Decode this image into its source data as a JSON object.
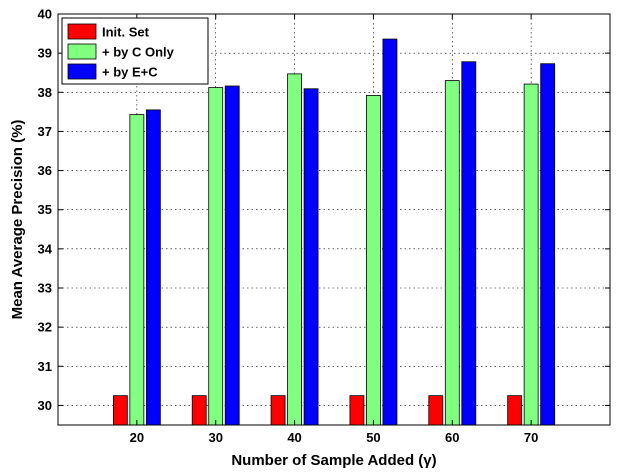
{
  "chart_data": {
    "type": "bar",
    "title": "",
    "xlabel": "Number of Sample Added (γ)",
    "ylabel": "Mean Average Precision (%)",
    "categories": [
      "20",
      "30",
      "40",
      "50",
      "60",
      "70"
    ],
    "ylim": [
      29.5,
      40
    ],
    "yticks": [
      30,
      31,
      32,
      33,
      34,
      35,
      36,
      37,
      38,
      39,
      40
    ],
    "grid": true,
    "legend_position": "top-left",
    "series": [
      {
        "name": "Init. Set",
        "color": "#ff0000",
        "values": [
          30.25,
          30.25,
          30.25,
          30.25,
          30.25,
          30.25
        ]
      },
      {
        "name": "+ by C Only",
        "color": "#80ff80",
        "values": [
          37.43,
          38.12,
          38.47,
          37.92,
          38.3,
          38.21
        ]
      },
      {
        "name": "+ by E+C",
        "color": "#0000ff",
        "values": [
          37.55,
          38.16,
          38.09,
          39.36,
          38.78,
          38.73
        ]
      }
    ]
  }
}
